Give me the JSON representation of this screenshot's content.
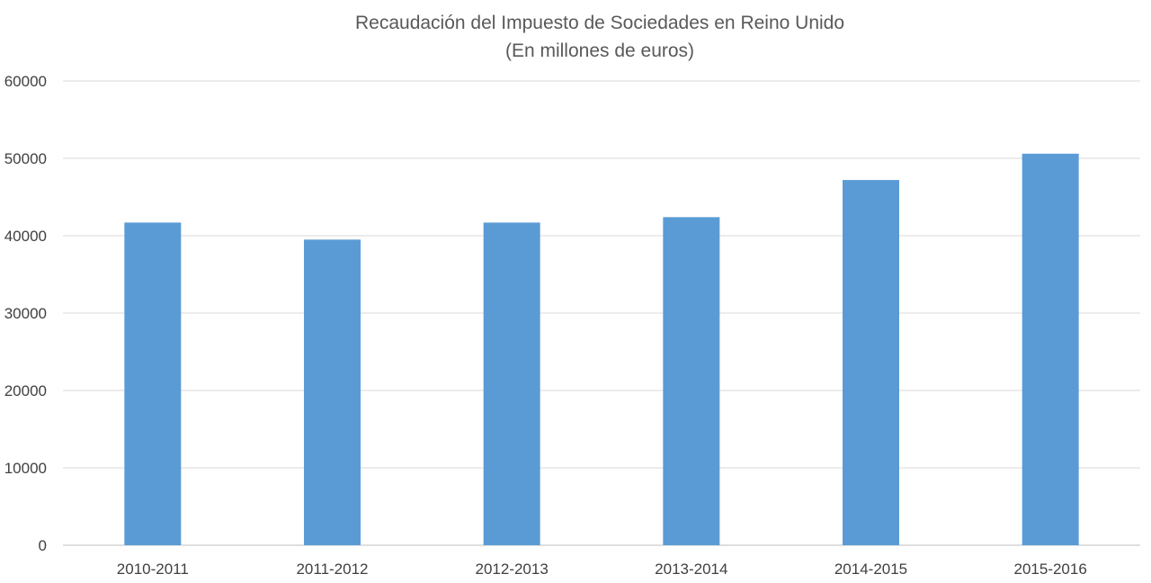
{
  "chart_data": {
    "type": "bar",
    "title": "Recaudación del Impuesto de Sociedades en Reino Unido",
    "subtitle": "(En millones de euros)",
    "categories": [
      "2010-2011",
      "2011-2012",
      "2012-2013",
      "2013-2014",
      "2014-2015",
      "2015-2016"
    ],
    "values": [
      41700,
      39500,
      41700,
      42400,
      47200,
      50600
    ],
    "ylim": [
      0,
      60000
    ],
    "yticks": [
      "0",
      "10000",
      "20000",
      "30000",
      "40000",
      "50000",
      "60000"
    ],
    "xlabel": "",
    "ylabel": "",
    "grid": true,
    "legend": "none",
    "bar_color": "#5b9bd5"
  }
}
